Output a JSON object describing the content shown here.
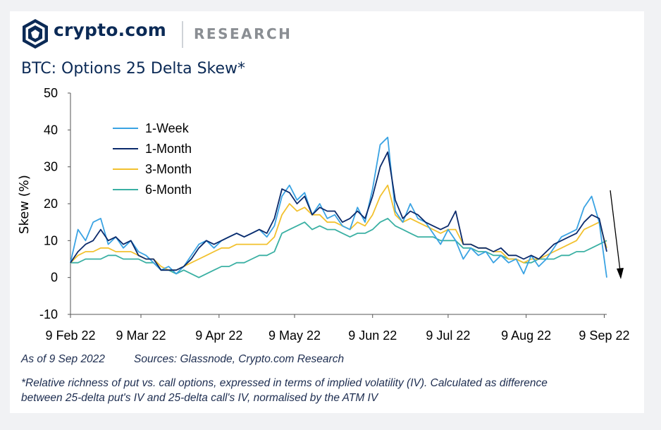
{
  "header": {
    "brand": "crypto.com",
    "section": "RESEARCH"
  },
  "title": "BTC: Options 25 Delta Skew*",
  "footer": {
    "as_of": "As of 9 Sep 2022",
    "sources": "Sources: Glassnode, Crypto.com Research",
    "note_line1": "*Relative richness of put vs. call options, expressed in terms of implied volatility (IV). Calculated as difference",
    "note_line2": "between 25-delta put's IV and 25-delta call's IV, normalised by the ATM IV"
  },
  "colors": {
    "one_week": "#3aa3e3",
    "one_month": "#0b2a6b",
    "three_month": "#f2c12e",
    "six_month": "#3ab0a3",
    "text": "#0b2a56"
  },
  "chart_data": {
    "type": "line",
    "title": "BTC: Options 25 Delta Skew*",
    "xlabel": "",
    "ylabel": "Skew (%)",
    "ylim": [
      -10,
      50
    ],
    "yticks": [
      -10,
      0,
      10,
      20,
      30,
      40,
      50
    ],
    "x_tick_labels": [
      "9 Feb 22",
      "9 Mar 22",
      "9 Apr 22",
      "9 May 22",
      "9 Jun 22",
      "9 Jul 22",
      "9 Aug 22",
      "9 Sep 22"
    ],
    "legend_position": "top-left",
    "grid": false,
    "x": [
      "2022-02-09",
      "2022-02-12",
      "2022-02-15",
      "2022-02-18",
      "2022-02-21",
      "2022-02-24",
      "2022-02-27",
      "2022-03-02",
      "2022-03-05",
      "2022-03-08",
      "2022-03-11",
      "2022-03-14",
      "2022-03-17",
      "2022-03-20",
      "2022-03-23",
      "2022-03-26",
      "2022-03-29",
      "2022-04-01",
      "2022-04-04",
      "2022-04-07",
      "2022-04-10",
      "2022-04-13",
      "2022-04-16",
      "2022-04-19",
      "2022-04-22",
      "2022-04-25",
      "2022-04-28",
      "2022-05-01",
      "2022-05-04",
      "2022-05-07",
      "2022-05-10",
      "2022-05-13",
      "2022-05-16",
      "2022-05-19",
      "2022-05-22",
      "2022-05-25",
      "2022-05-28",
      "2022-05-31",
      "2022-06-03",
      "2022-06-06",
      "2022-06-09",
      "2022-06-12",
      "2022-06-15",
      "2022-06-18",
      "2022-06-21",
      "2022-06-24",
      "2022-06-27",
      "2022-06-30",
      "2022-07-03",
      "2022-07-06",
      "2022-07-09",
      "2022-07-12",
      "2022-07-15",
      "2022-07-18",
      "2022-07-21",
      "2022-07-24",
      "2022-07-27",
      "2022-07-30",
      "2022-08-02",
      "2022-08-05",
      "2022-08-08",
      "2022-08-11",
      "2022-08-14",
      "2022-08-17",
      "2022-08-20",
      "2022-08-23",
      "2022-08-26",
      "2022-08-29",
      "2022-09-01",
      "2022-09-04",
      "2022-09-07",
      "2022-09-09"
    ],
    "series": [
      {
        "name": "1-Week",
        "color": "#3aa3e3",
        "values": [
          4,
          13,
          10,
          15,
          16,
          9,
          11,
          8,
          10,
          7,
          6,
          4,
          2,
          3,
          1,
          3,
          6,
          9,
          10,
          8,
          10,
          11,
          12,
          11,
          12,
          13,
          11,
          14,
          22,
          25,
          21,
          23,
          17,
          20,
          16,
          17,
          14,
          13,
          19,
          15,
          24,
          36,
          38,
          18,
          15,
          20,
          16,
          15,
          12,
          9,
          13,
          10,
          5,
          8,
          6,
          7,
          4,
          6,
          4,
          5,
          1,
          6,
          3,
          5,
          8,
          11,
          12,
          13,
          19,
          22,
          15,
          0
        ]
      },
      {
        "name": "1-Month",
        "color": "#0b2a6b",
        "values": [
          4,
          7,
          9,
          10,
          13,
          10,
          11,
          9,
          10,
          6,
          5,
          5,
          2,
          2,
          2,
          3,
          5,
          8,
          10,
          9,
          10,
          11,
          12,
          11,
          12,
          13,
          12,
          16,
          24,
          23,
          20,
          22,
          17,
          19,
          18,
          18,
          15,
          16,
          18,
          16,
          22,
          30,
          34,
          21,
          16,
          18,
          17,
          15,
          14,
          13,
          14,
          18,
          9,
          9,
          8,
          8,
          7,
          8,
          6,
          6,
          5,
          6,
          5,
          7,
          9,
          10,
          11,
          12,
          15,
          17,
          16,
          7
        ]
      },
      {
        "name": "3-Month",
        "color": "#f2c12e",
        "values": [
          4,
          6,
          7,
          7,
          8,
          8,
          7,
          7,
          7,
          6,
          5,
          5,
          3,
          2,
          2,
          3,
          4,
          5,
          6,
          7,
          8,
          8,
          9,
          9,
          9,
          9,
          9,
          11,
          17,
          20,
          18,
          19,
          17,
          17,
          15,
          15,
          14,
          13,
          15,
          14,
          17,
          22,
          25,
          17,
          15,
          16,
          15,
          14,
          13,
          12,
          13,
          13,
          9,
          9,
          8,
          8,
          7,
          7,
          5,
          5,
          4,
          5,
          5,
          6,
          7,
          8,
          9,
          10,
          13,
          14,
          15,
          8
        ]
      },
      {
        "name": "6-Month",
        "color": "#3ab0a3",
        "values": [
          4,
          4,
          5,
          5,
          5,
          6,
          6,
          5,
          5,
          5,
          4,
          4,
          2,
          2,
          1,
          2,
          1,
          0,
          1,
          2,
          3,
          3,
          4,
          4,
          5,
          6,
          6,
          7,
          12,
          13,
          14,
          15,
          13,
          14,
          13,
          13,
          12,
          11,
          12,
          12,
          13,
          15,
          16,
          14,
          13,
          12,
          11,
          11,
          11,
          10,
          10,
          10,
          8,
          8,
          7,
          7,
          6,
          6,
          5,
          5,
          4,
          4,
          5,
          5,
          5,
          6,
          6,
          7,
          7,
          8,
          9,
          10
        ]
      }
    ]
  }
}
